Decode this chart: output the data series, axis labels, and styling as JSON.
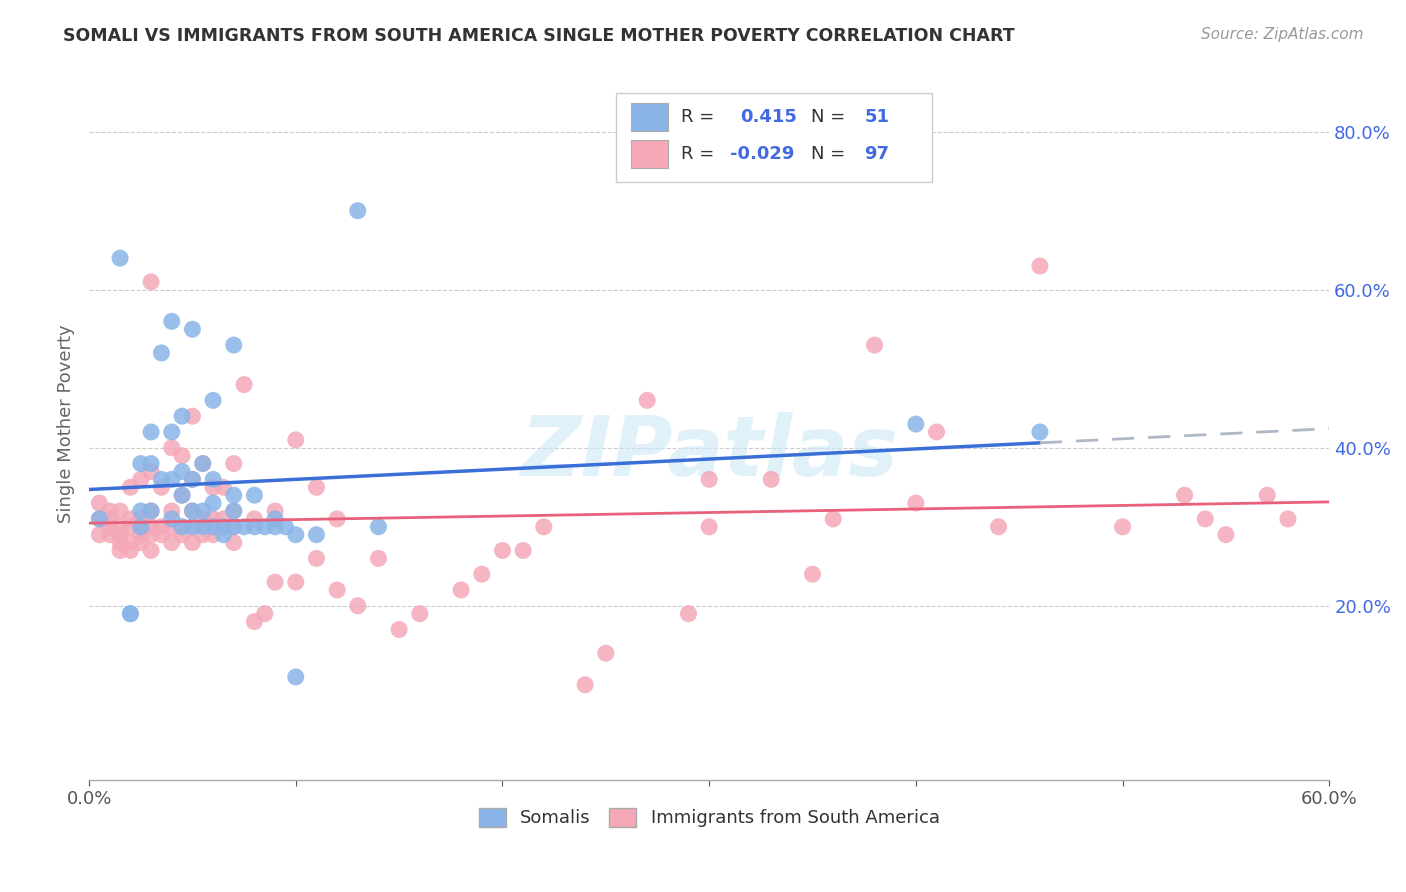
{
  "title": "SOMALI VS IMMIGRANTS FROM SOUTH AMERICA SINGLE MOTHER POVERTY CORRELATION CHART",
  "source": "Source: ZipAtlas.com",
  "ylabel": "Single Mother Poverty",
  "xlim": [
    0.0,
    0.6
  ],
  "ylim": [
    -0.02,
    0.88
  ],
  "somali_color": "#8ab4e8",
  "south_america_color": "#f4a8b8",
  "somali_line_color": "#3a6fd8",
  "south_america_line_color": "#e8607a",
  "dashed_line_color": "#b0b8c8",
  "background_color": "#ffffff",
  "watermark": "ZIPatlas",
  "legend_R_somali": "0.415",
  "legend_N_somali": "51",
  "legend_R_sa": "-0.029",
  "legend_N_sa": "97",
  "somali_x": [
    0.005,
    0.015,
    0.02,
    0.02,
    0.025,
    0.025,
    0.025,
    0.03,
    0.03,
    0.03,
    0.035,
    0.035,
    0.04,
    0.04,
    0.04,
    0.04,
    0.045,
    0.045,
    0.045,
    0.045,
    0.05,
    0.05,
    0.05,
    0.05,
    0.055,
    0.055,
    0.055,
    0.06,
    0.06,
    0.06,
    0.06,
    0.065,
    0.065,
    0.07,
    0.07,
    0.07,
    0.07,
    0.075,
    0.08,
    0.08,
    0.085,
    0.09,
    0.09,
    0.095,
    0.1,
    0.1,
    0.11,
    0.13,
    0.14,
    0.4,
    0.46
  ],
  "somali_y": [
    0.31,
    0.64,
    0.19,
    0.19,
    0.3,
    0.32,
    0.38,
    0.32,
    0.38,
    0.42,
    0.36,
    0.52,
    0.31,
    0.36,
    0.42,
    0.56,
    0.3,
    0.34,
    0.37,
    0.44,
    0.3,
    0.32,
    0.36,
    0.55,
    0.3,
    0.32,
    0.38,
    0.3,
    0.33,
    0.36,
    0.46,
    0.29,
    0.3,
    0.3,
    0.32,
    0.34,
    0.53,
    0.3,
    0.3,
    0.34,
    0.3,
    0.31,
    0.3,
    0.3,
    0.29,
    0.11,
    0.29,
    0.7,
    0.3,
    0.43,
    0.42
  ],
  "south_america_x": [
    0.005,
    0.005,
    0.005,
    0.01,
    0.01,
    0.01,
    0.01,
    0.015,
    0.015,
    0.015,
    0.015,
    0.015,
    0.02,
    0.02,
    0.02,
    0.02,
    0.02,
    0.025,
    0.025,
    0.025,
    0.025,
    0.025,
    0.03,
    0.03,
    0.03,
    0.03,
    0.03,
    0.03,
    0.035,
    0.035,
    0.035,
    0.04,
    0.04,
    0.04,
    0.04,
    0.045,
    0.045,
    0.045,
    0.045,
    0.05,
    0.05,
    0.05,
    0.05,
    0.05,
    0.055,
    0.055,
    0.055,
    0.06,
    0.06,
    0.06,
    0.065,
    0.065,
    0.07,
    0.07,
    0.07,
    0.07,
    0.075,
    0.08,
    0.08,
    0.085,
    0.09,
    0.09,
    0.1,
    0.1,
    0.11,
    0.11,
    0.12,
    0.12,
    0.13,
    0.14,
    0.15,
    0.16,
    0.18,
    0.19,
    0.2,
    0.21,
    0.22,
    0.24,
    0.25,
    0.27,
    0.29,
    0.3,
    0.3,
    0.33,
    0.35,
    0.36,
    0.38,
    0.4,
    0.41,
    0.44,
    0.46,
    0.5,
    0.53,
    0.54,
    0.55,
    0.57,
    0.58
  ],
  "south_america_y": [
    0.29,
    0.31,
    0.33,
    0.29,
    0.3,
    0.31,
    0.32,
    0.27,
    0.28,
    0.29,
    0.3,
    0.32,
    0.27,
    0.28,
    0.3,
    0.31,
    0.35,
    0.28,
    0.29,
    0.3,
    0.31,
    0.36,
    0.27,
    0.29,
    0.3,
    0.32,
    0.37,
    0.61,
    0.29,
    0.3,
    0.35,
    0.28,
    0.3,
    0.32,
    0.4,
    0.29,
    0.3,
    0.34,
    0.39,
    0.28,
    0.3,
    0.32,
    0.36,
    0.44,
    0.29,
    0.31,
    0.38,
    0.29,
    0.31,
    0.35,
    0.31,
    0.35,
    0.28,
    0.3,
    0.32,
    0.38,
    0.48,
    0.18,
    0.31,
    0.19,
    0.23,
    0.32,
    0.23,
    0.41,
    0.26,
    0.35,
    0.22,
    0.31,
    0.2,
    0.26,
    0.17,
    0.19,
    0.22,
    0.24,
    0.27,
    0.27,
    0.3,
    0.1,
    0.14,
    0.46,
    0.19,
    0.3,
    0.36,
    0.36,
    0.24,
    0.31,
    0.53,
    0.33,
    0.42,
    0.3,
    0.63,
    0.3,
    0.34,
    0.31,
    0.29,
    0.34,
    0.31
  ]
}
